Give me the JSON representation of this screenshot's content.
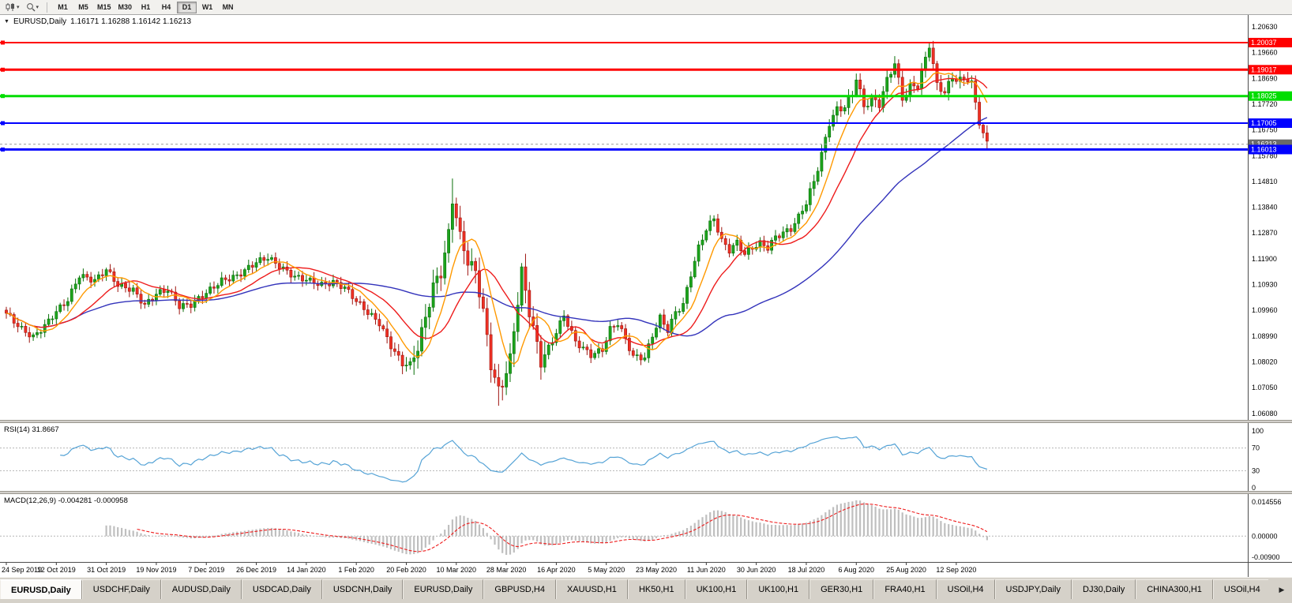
{
  "toolbar": {
    "timeframes": [
      "M1",
      "M5",
      "M15",
      "M30",
      "H1",
      "H4",
      "D1",
      "W1",
      "MN"
    ],
    "active_timeframe": "D1"
  },
  "chart": {
    "symbol_title": "EURUSD,Daily",
    "ohlc_line": "1.16171 1.16288 1.16142 1.16213",
    "menu_icon": "▼",
    "y_ticks": [
      "1.20630",
      "1.19660",
      "1.18690",
      "1.17720",
      "1.16750",
      "1.15780",
      "1.14810",
      "1.13840",
      "1.12870",
      "1.11900",
      "1.10930",
      "1.09960",
      "1.08990",
      "1.08020",
      "1.07050",
      "1.06080"
    ],
    "hlines": [
      {
        "price": 1.20037,
        "label": "1.20037",
        "color": "#FF0000",
        "thickness": 2
      },
      {
        "price": 1.19017,
        "label": "1.19017",
        "color": "#FF0000",
        "thickness": 3
      },
      {
        "price": 1.18025,
        "label": "1.18025",
        "color": "#00DD00",
        "thickness": 3
      },
      {
        "price": 1.17005,
        "label": "1.17005",
        "color": "#0000FF",
        "thickness": 2
      },
      {
        "price": 1.16013,
        "label": "1.16013",
        "color": "#0000FF",
        "thickness": 3
      }
    ],
    "current_price": {
      "price": 1.16213,
      "label": "1.16213"
    },
    "colors": {
      "up": "#1CA41C",
      "up_border": "#0A700A",
      "down": "#EF3124",
      "down_border": "#9E1510",
      "ma_fast": "#FF9900",
      "ma_mid": "#EE1C1C",
      "ma_slow": "#3333BB",
      "rsi": "#55A3D6",
      "level_dash": "#B5B5B5",
      "macd_hist": "#BFBFBF",
      "macd_signal": "#EE1C1C",
      "axis_line": "#4d4d4d",
      "bid_line": "#9a9a9a",
      "bid_tag": "#6a6a6a"
    }
  },
  "rsi": {
    "label": "RSI(14) 31.8667",
    "period": 14,
    "value": "31.8667",
    "ticks": [
      "100",
      "70",
      "30",
      "0"
    ],
    "levels": [
      70,
      30
    ]
  },
  "macd": {
    "label": "MACD(12,26,9) -0.004281 -0.000958",
    "params": [
      12,
      26,
      9
    ],
    "value": "-0.004281",
    "signal_value": "-0.000958",
    "ticks": [
      {
        "v": 0.014556,
        "t": "0.014556"
      },
      {
        "v": 0,
        "t": "0.00000"
      },
      {
        "v": -0.009,
        "t": "-0.00900"
      }
    ]
  },
  "date_axis": {
    "labels": [
      {
        "i": 0,
        "t": "24 Sep 2019"
      },
      {
        "i": 13,
        "t": "12 Oct 2019"
      },
      {
        "i": 26,
        "t": "31 Oct 2019"
      },
      {
        "i": 39,
        "t": "19 Nov 2019"
      },
      {
        "i": 52,
        "t": "7 Dec 2019"
      },
      {
        "i": 65,
        "t": "26 Dec 2019"
      },
      {
        "i": 78,
        "t": "14 Jan 2020"
      },
      {
        "i": 91,
        "t": "1 Feb 2020"
      },
      {
        "i": 104,
        "t": "20 Feb 2020"
      },
      {
        "i": 117,
        "t": "10 Mar 2020"
      },
      {
        "i": 130,
        "t": "28 Mar 2020"
      },
      {
        "i": 143,
        "t": "16 Apr 2020"
      },
      {
        "i": 156,
        "t": "5 May 2020"
      },
      {
        "i": 169,
        "t": "23 May 2020"
      },
      {
        "i": 182,
        "t": "11 Jun 2020"
      },
      {
        "i": 195,
        "t": "30 Jun 2020"
      },
      {
        "i": 208,
        "t": "18 Jul 2020"
      },
      {
        "i": 221,
        "t": "6 Aug 2020"
      },
      {
        "i": 234,
        "t": "25 Aug 2020"
      },
      {
        "i": 247,
        "t": "12 Sep 2020"
      }
    ]
  },
  "tabs": {
    "items": [
      "EURUSD,Daily",
      "USDCHF,Daily",
      "AUDUSD,Daily",
      "USDCAD,Daily",
      "USDCNH,Daily",
      "EURUSD,Daily",
      "GBPUSD,H4",
      "XAUUSD,H1",
      "HK50,H1",
      "UK100,H1",
      "UK100,H1",
      "GER30,H1",
      "FRA40,H1",
      "USOil,H4",
      "USDJPY,Daily",
      "DJ30,Daily",
      "CHINA300,H1",
      "USOil,H4"
    ],
    "active_index": 0,
    "more_icon": "▶"
  },
  "chart_data": {
    "type": "candlestick",
    "symbol": "EURUSD",
    "period": "Daily",
    "num_candles": 256,
    "x_range_dates": [
      "24 Sep 2019",
      "25 Sep 2020"
    ],
    "visible_price_range": [
      1.06005,
      1.2063
    ],
    "close_anchors": [
      [
        0,
        1.0985
      ],
      [
        4,
        1.0925
      ],
      [
        7,
        1.0895
      ],
      [
        10,
        1.0938
      ],
      [
        13,
        1.0992
      ],
      [
        16,
        1.1035
      ],
      [
        19,
        1.1128
      ],
      [
        23,
        1.1108
      ],
      [
        26,
        1.115
      ],
      [
        29,
        1.1092
      ],
      [
        33,
        1.1072
      ],
      [
        36,
        1.1015
      ],
      [
        39,
        1.1058
      ],
      [
        42,
        1.1075
      ],
      [
        45,
        1.1012
      ],
      [
        48,
        1.1018
      ],
      [
        52,
        1.1062
      ],
      [
        56,
        1.1108
      ],
      [
        60,
        1.1125
      ],
      [
        65,
        1.1178
      ],
      [
        68,
        1.1195
      ],
      [
        71,
        1.1162
      ],
      [
        75,
        1.1122
      ],
      [
        78,
        1.1112
      ],
      [
        82,
        1.1092
      ],
      [
        85,
        1.1102
      ],
      [
        88,
        1.1082
      ],
      [
        91,
        1.1032
      ],
      [
        94,
        1.0988
      ],
      [
        97,
        1.0948
      ],
      [
        100,
        1.0862
      ],
      [
        103,
        1.0795
      ],
      [
        105,
        1.0792
      ],
      [
        107,
        1.0858
      ],
      [
        109,
        1.0968
      ],
      [
        111,
        1.1088
      ],
      [
        113,
        1.1138
      ],
      [
        115,
        1.1282
      ],
      [
        116,
        1.1412
      ],
      [
        117,
        1.1352
      ],
      [
        118,
        1.1272
      ],
      [
        120,
        1.1182
      ],
      [
        122,
        1.1142
      ],
      [
        124,
        1.0992
      ],
      [
        126,
        1.0792
      ],
      [
        128,
        1.0692
      ],
      [
        129,
        1.0722
      ],
      [
        131,
        1.0812
      ],
      [
        133,
        1.1032
      ],
      [
        134,
        1.1142
      ],
      [
        136,
        1.0992
      ],
      [
        139,
        1.0802
      ],
      [
        142,
        1.0882
      ],
      [
        145,
        1.0978
      ],
      [
        148,
        1.0878
      ],
      [
        152,
        1.0828
      ],
      [
        155,
        1.0848
      ],
      [
        157,
        1.0925
      ],
      [
        159,
        1.0948
      ],
      [
        161,
        1.0888
      ],
      [
        163,
        1.0822
      ],
      [
        166,
        1.0818
      ],
      [
        168,
        1.0902
      ],
      [
        170,
        1.0968
      ],
      [
        172,
        1.0922
      ],
      [
        174,
        1.0988
      ],
      [
        176,
        1.1018
      ],
      [
        178,
        1.1132
      ],
      [
        180,
        1.1232
      ],
      [
        182,
        1.1302
      ],
      [
        184,
        1.1342
      ],
      [
        186,
        1.1258
      ],
      [
        188,
        1.1222
      ],
      [
        190,
        1.1252
      ],
      [
        192,
        1.1208
      ],
      [
        194,
        1.1232
      ],
      [
        196,
        1.1248
      ],
      [
        198,
        1.1232
      ],
      [
        200,
        1.1272
      ],
      [
        202,
        1.1288
      ],
      [
        204,
        1.1302
      ],
      [
        206,
        1.1348
      ],
      [
        208,
        1.1402
      ],
      [
        210,
        1.1482
      ],
      [
        212,
        1.1582
      ],
      [
        214,
        1.1702
      ],
      [
        216,
        1.1752
      ],
      [
        218,
        1.1762
      ],
      [
        220,
        1.1812
      ],
      [
        221,
        1.1872
      ],
      [
        223,
        1.1762
      ],
      [
        225,
        1.1792
      ],
      [
        227,
        1.1772
      ],
      [
        229,
        1.1862
      ],
      [
        231,
        1.1928
      ],
      [
        233,
        1.1792
      ],
      [
        235,
        1.1838
      ],
      [
        237,
        1.1842
      ],
      [
        239,
        1.1942
      ],
      [
        240,
        1.1996
      ],
      [
        241,
        1.1922
      ],
      [
        242,
        1.1842
      ],
      [
        244,
        1.1818
      ],
      [
        246,
        1.1872
      ],
      [
        248,
        1.1862
      ],
      [
        250,
        1.1868
      ],
      [
        251,
        1.1852
      ],
      [
        252,
        1.1772
      ],
      [
        253,
        1.1706
      ],
      [
        254,
        1.1662
      ],
      [
        255,
        1.1621
      ]
    ],
    "wick_overrides": [
      [
        116,
        "high",
        1.1492
      ],
      [
        128,
        "low",
        1.0637
      ],
      [
        240,
        "high",
        1.2005
      ]
    ],
    "moving_averages": [
      {
        "name": "slow",
        "period": 55,
        "color_key": "ma_slow"
      },
      {
        "name": "mid",
        "period": 17,
        "color_key": "ma_mid"
      },
      {
        "name": "fast",
        "period": 8,
        "color_key": "ma_fast"
      }
    ],
    "indicators": {
      "rsi_period": 14,
      "rsi_last": 31.8667,
      "macd_params": [
        12,
        26,
        9
      ],
      "macd_last": -0.004281,
      "macd_signal_last": -0.000958
    }
  }
}
